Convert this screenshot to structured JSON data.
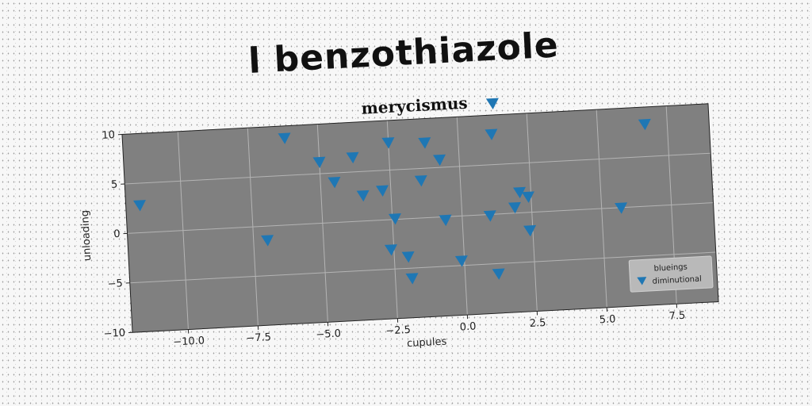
{
  "suptitle": "l benzothiazole",
  "chart_data": {
    "type": "scatter",
    "title": "merycismus",
    "xlabel": "cupules",
    "ylabel": "unloading",
    "xlim": [
      -12,
      9
    ],
    "ylim": [
      -10,
      10
    ],
    "xticks": [
      -10.0,
      -7.5,
      -5.0,
      -2.5,
      0.0,
      2.5,
      5.0,
      7.5
    ],
    "xtick_labels": [
      "−10.0",
      "−7.5",
      "−5.0",
      "−2.5",
      "0.0",
      "2.5",
      "5.0",
      "7.5"
    ],
    "yticks": [
      -10,
      -5,
      0,
      5,
      10
    ],
    "ytick_labels": [
      "−10",
      "−5",
      "0",
      "5",
      "10"
    ],
    "grid": true,
    "marker": "triangle-down",
    "color": "#1f77b4",
    "legend": {
      "position": "lower right",
      "title": "blueings",
      "entries": [
        "diminutional"
      ]
    },
    "series": [
      {
        "name": "diminutional",
        "points": [
          [
            -11.5,
            2.8
          ],
          [
            -7.0,
            -1.4
          ],
          [
            -6.2,
            8.8
          ],
          [
            -5.0,
            6.2
          ],
          [
            -4.5,
            4.1
          ],
          [
            -3.8,
            6.5
          ],
          [
            -3.5,
            2.6
          ],
          [
            -2.8,
            3.0
          ],
          [
            -2.6,
            -3.0
          ],
          [
            -2.5,
            7.8
          ],
          [
            -2.4,
            0.1
          ],
          [
            -2.0,
            -3.8
          ],
          [
            -1.9,
            -6.0
          ],
          [
            -1.4,
            3.8
          ],
          [
            -1.2,
            7.6
          ],
          [
            -0.7,
            5.8
          ],
          [
            -0.6,
            -0.3
          ],
          [
            -0.1,
            -4.5
          ],
          [
            1.0,
            -0.1
          ],
          [
            1.2,
            8.1
          ],
          [
            1.2,
            -6.0
          ],
          [
            1.3,
            11.2
          ],
          [
            1.9,
            0.6
          ],
          [
            2.1,
            2.1
          ],
          [
            2.4,
            1.6
          ],
          [
            2.4,
            -1.8
          ],
          [
            5.7,
            0.0
          ],
          [
            6.7,
            8.3
          ]
        ]
      }
    ]
  }
}
